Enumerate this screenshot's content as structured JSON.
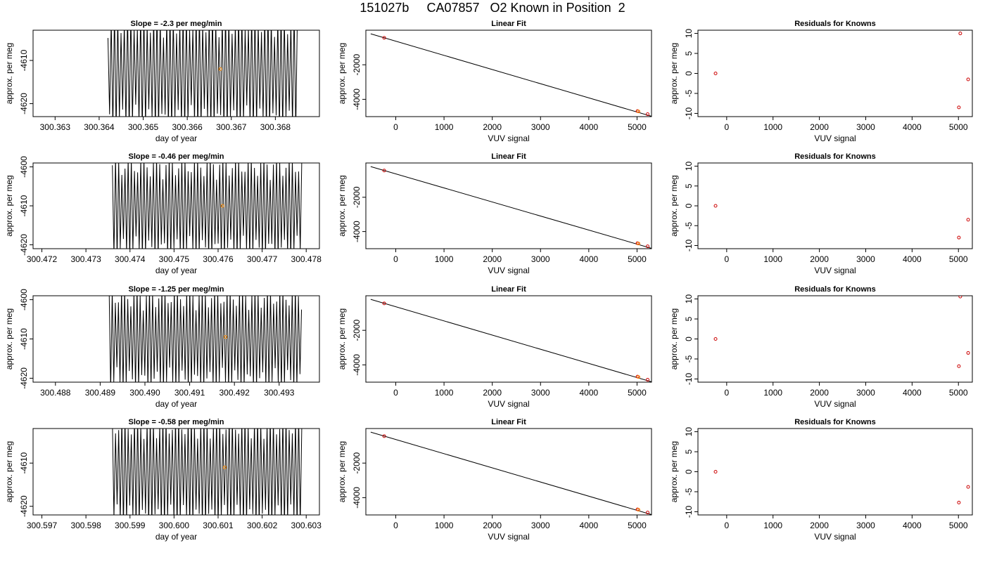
{
  "page": {
    "title": "151027b     CA07857   O2 Known in Position  2"
  },
  "chart_data": [
    {
      "type": "line",
      "row": 0,
      "col": 0,
      "title": "Slope =  -2.3  per meg/min",
      "xlabel": "day of year",
      "ylabel": "approx. per meg",
      "xlim": [
        300.3625,
        300.369
      ],
      "ylim": [
        -4623,
        -4603
      ],
      "xticks": [
        "300.363",
        "300.364",
        "300.365",
        "300.366",
        "300.367",
        "300.368"
      ],
      "yticks": [
        "-4610",
        "-4620"
      ],
      "series": [
        {
          "x_start": 300.3642,
          "x_end": 300.3685,
          "center": -4612.5,
          "amplitude": 14,
          "cycles": 58,
          "phase": 0.0
        }
      ],
      "highlight": {
        "x": 300.36675,
        "y": -4612,
        "color": "#ff8c00"
      }
    },
    {
      "type": "scatter",
      "row": 0,
      "col": 1,
      "title": "Linear Fit",
      "xlabel": "VUV signal",
      "ylabel": "approx. per meg",
      "xlim": [
        -620,
        5300
      ],
      "ylim": [
        -5000,
        0
      ],
      "xticks": [
        "0",
        "1000",
        "2000",
        "3000",
        "4000",
        "5000"
      ],
      "yticks": [
        "-2000",
        "-4000"
      ],
      "line": {
        "x": [
          -520,
          5300
        ],
        "y": [
          -210,
          -4980
        ]
      },
      "points": [
        {
          "x": -240,
          "y": -440,
          "color": "#cc0000"
        },
        {
          "x": 5010,
          "y": -4680,
          "color": "#cc0000"
        },
        {
          "x": 5030,
          "y": -4700,
          "color": "#ff8c00"
        },
        {
          "x": 5220,
          "y": -4860,
          "color": "#cc0000"
        }
      ]
    },
    {
      "type": "scatter",
      "row": 0,
      "col": 2,
      "title": "Residuals for Knowns",
      "xlabel": "VUV signal",
      "ylabel": "approx. per meg",
      "xlim": [
        -620,
        5300
      ],
      "ylim": [
        -10.8,
        10.8
      ],
      "xticks": [
        "0",
        "1000",
        "2000",
        "3000",
        "4000",
        "5000"
      ],
      "yticks": [
        "10",
        "5",
        "0",
        "-5",
        "-10"
      ],
      "points": [
        {
          "x": -240,
          "y": 0,
          "color": "#cc0000"
        },
        {
          "x": 5040,
          "y": 10,
          "color": "#cc0000"
        },
        {
          "x": 5010,
          "y": -8.5,
          "color": "#cc0000"
        },
        {
          "x": 5210,
          "y": -1.5,
          "color": "#cc0000"
        }
      ]
    },
    {
      "type": "line",
      "row": 1,
      "col": 0,
      "title": "Slope =  -0.46  per meg/min",
      "xlabel": "day of year",
      "ylabel": "approx. per meg",
      "xlim": [
        300.4718,
        300.4783
      ],
      "ylim": [
        -4621,
        -4599
      ],
      "xticks": [
        "300.472",
        "300.473",
        "300.474",
        "300.475",
        "300.476",
        "300.477",
        "300.478"
      ],
      "yticks": [
        "-4600",
        "-4610",
        "-4620"
      ],
      "series": [
        {
          "x_start": 300.4736,
          "x_end": 300.4779,
          "center": -4610.5,
          "amplitude": 13,
          "cycles": 60,
          "phase": 0.7
        }
      ],
      "highlight": {
        "x": 300.4761,
        "y": -4610,
        "color": "#ff8c00"
      }
    },
    {
      "type": "scatter",
      "row": 1,
      "col": 1,
      "title": "Linear Fit",
      "xlabel": "VUV signal",
      "ylabel": "approx. per meg",
      "xlim": [
        -620,
        5300
      ],
      "ylim": [
        -5000,
        0
      ],
      "xticks": [
        "0",
        "1000",
        "2000",
        "3000",
        "4000",
        "5000"
      ],
      "yticks": [
        "-2000",
        "-4000"
      ],
      "line": {
        "x": [
          -520,
          5300
        ],
        "y": [
          -210,
          -4980
        ]
      },
      "points": [
        {
          "x": -240,
          "y": -440,
          "color": "#cc0000"
        },
        {
          "x": 5010,
          "y": -4680,
          "color": "#cc0000"
        },
        {
          "x": 5030,
          "y": -4700,
          "color": "#ff8c00"
        },
        {
          "x": 5220,
          "y": -4860,
          "color": "#cc0000"
        }
      ]
    },
    {
      "type": "scatter",
      "row": 1,
      "col": 2,
      "title": "Residuals for Knowns",
      "xlabel": "VUV signal",
      "ylabel": "approx. per meg",
      "xlim": [
        -620,
        5300
      ],
      "ylim": [
        -10.8,
        10.8
      ],
      "xticks": [
        "0",
        "1000",
        "2000",
        "3000",
        "4000",
        "5000"
      ],
      "yticks": [
        "10",
        "5",
        "0",
        "-5",
        "-10"
      ],
      "points": [
        {
          "x": -240,
          "y": 0,
          "color": "#cc0000"
        },
        {
          "x": 5010,
          "y": -8,
          "color": "#cc0000"
        },
        {
          "x": 5210,
          "y": -3.5,
          "color": "#cc0000"
        }
      ]
    },
    {
      "type": "line",
      "row": 2,
      "col": 0,
      "title": "Slope =  -1.25  per meg/min",
      "xlabel": "day of year",
      "ylabel": "approx. per meg",
      "xlim": [
        300.4875,
        300.4939
      ],
      "ylim": [
        -4621,
        -4599
      ],
      "xticks": [
        "300.488",
        "300.489",
        "300.490",
        "300.491",
        "300.492",
        "300.493"
      ],
      "yticks": [
        "-4600",
        "-4610",
        "-4620"
      ],
      "series": [
        {
          "x_start": 300.4892,
          "x_end": 300.4935,
          "center": -4610,
          "amplitude": 13,
          "cycles": 62,
          "phase": 1.3
        }
      ],
      "highlight": {
        "x": 300.4918,
        "y": -4609.5,
        "color": "#ff8c00"
      }
    },
    {
      "type": "scatter",
      "row": 2,
      "col": 1,
      "title": "Linear Fit",
      "xlabel": "VUV signal",
      "ylabel": "approx. per meg",
      "xlim": [
        -620,
        5300
      ],
      "ylim": [
        -5000,
        0
      ],
      "xticks": [
        "0",
        "1000",
        "2000",
        "3000",
        "4000",
        "5000"
      ],
      "yticks": [
        "-2000",
        "-4000"
      ],
      "line": {
        "x": [
          -520,
          5300
        ],
        "y": [
          -210,
          -4980
        ]
      },
      "points": [
        {
          "x": -240,
          "y": -440,
          "color": "#cc0000"
        },
        {
          "x": 5010,
          "y": -4680,
          "color": "#cc0000"
        },
        {
          "x": 5030,
          "y": -4700,
          "color": "#ff8c00"
        },
        {
          "x": 5220,
          "y": -4860,
          "color": "#cc0000"
        }
      ]
    },
    {
      "type": "scatter",
      "row": 2,
      "col": 2,
      "title": "Residuals for Knowns",
      "xlabel": "VUV signal",
      "ylabel": "approx. per meg",
      "xlim": [
        -620,
        5300
      ],
      "ylim": [
        -10.8,
        10.8
      ],
      "xticks": [
        "0",
        "1000",
        "2000",
        "3000",
        "4000",
        "5000"
      ],
      "yticks": [
        "10",
        "5",
        "0",
        "-5",
        "-10"
      ],
      "points": [
        {
          "x": -240,
          "y": 0,
          "color": "#cc0000"
        },
        {
          "x": 5040,
          "y": 10.6,
          "color": "#cc0000"
        },
        {
          "x": 5010,
          "y": -6.8,
          "color": "#cc0000"
        },
        {
          "x": 5210,
          "y": -3.5,
          "color": "#cc0000"
        }
      ]
    },
    {
      "type": "line",
      "row": 3,
      "col": 0,
      "title": "Slope =  -0.58  per meg/min",
      "xlabel": "day of year",
      "ylabel": "approx. per meg",
      "xlim": [
        300.5968,
        300.6033
      ],
      "ylim": [
        -4622,
        -4602
      ],
      "xticks": [
        "300.597",
        "300.598",
        "300.599",
        "300.600",
        "300.601",
        "300.602",
        "300.603"
      ],
      "yticks": [
        "-4610",
        "-4620"
      ],
      "series": [
        {
          "x_start": 300.5986,
          "x_end": 300.6029,
          "center": -4612,
          "amplitude": 13,
          "cycles": 60,
          "phase": 2.1
        }
      ],
      "highlight": {
        "x": 300.60115,
        "y": -4611,
        "color": "#ff8c00"
      }
    },
    {
      "type": "scatter",
      "row": 3,
      "col": 1,
      "title": "Linear Fit",
      "xlabel": "VUV signal",
      "ylabel": "approx. per meg",
      "xlim": [
        -620,
        5300
      ],
      "ylim": [
        -5000,
        0
      ],
      "xticks": [
        "0",
        "1000",
        "2000",
        "3000",
        "4000",
        "5000"
      ],
      "yticks": [
        "-2000",
        "-4000"
      ],
      "line": {
        "x": [
          -520,
          5300
        ],
        "y": [
          -210,
          -4980
        ]
      },
      "points": [
        {
          "x": -240,
          "y": -440,
          "color": "#cc0000"
        },
        {
          "x": 5010,
          "y": -4680,
          "color": "#cc0000"
        },
        {
          "x": 5030,
          "y": -4700,
          "color": "#ff8c00"
        },
        {
          "x": 5220,
          "y": -4860,
          "color": "#cc0000"
        }
      ]
    },
    {
      "type": "scatter",
      "row": 3,
      "col": 2,
      "title": "Residuals for Knowns",
      "xlabel": "VUV signal",
      "ylabel": "approx. per meg",
      "xlim": [
        -620,
        5300
      ],
      "ylim": [
        -10.8,
        10.8
      ],
      "xticks": [
        "0",
        "1000",
        "2000",
        "3000",
        "4000",
        "5000"
      ],
      "yticks": [
        "10",
        "5",
        "0",
        "-5",
        "-10"
      ],
      "points": [
        {
          "x": -240,
          "y": 0,
          "color": "#cc0000"
        },
        {
          "x": 5010,
          "y": -7.7,
          "color": "#cc0000"
        },
        {
          "x": 5210,
          "y": -3.8,
          "color": "#cc0000"
        }
      ]
    }
  ]
}
